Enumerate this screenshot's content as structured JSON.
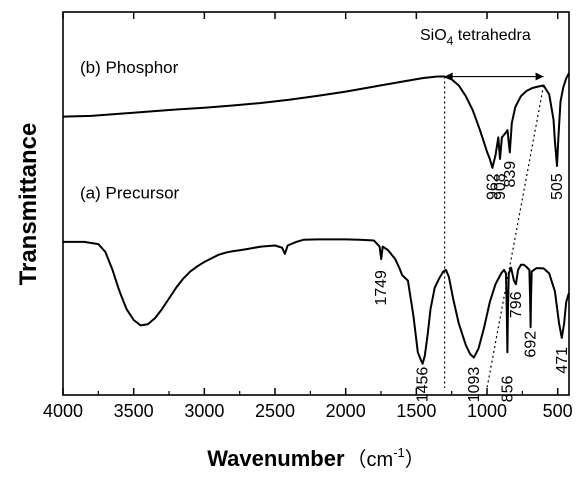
{
  "chart_data": {
    "type": "line",
    "xlabel": "Wavenumber",
    "xlabel_unit": "（cm",
    "xlabel_unit_exp": "-1",
    "xlabel_unit_close": "）",
    "ylabel": "Transmittance",
    "xlim": [
      4000,
      420
    ],
    "x_reversed": true,
    "ylim": [
      0,
      1
    ],
    "x_ticks": [
      4000,
      3500,
      3000,
      2500,
      2000,
      1500,
      1000,
      500
    ],
    "x_tick_labels": [
      "4000",
      "3500",
      "3000",
      "2500",
      "2000",
      "1500",
      "1000",
      "500"
    ],
    "y_ticks_shown": false,
    "grid": false,
    "series": [
      {
        "name": "(b) Phosphor",
        "points": [
          [
            4000,
            0.758
          ],
          [
            3800,
            0.76
          ],
          [
            3600,
            0.766
          ],
          [
            3400,
            0.772
          ],
          [
            3200,
            0.778
          ],
          [
            3000,
            0.783
          ],
          [
            2800,
            0.789
          ],
          [
            2600,
            0.796
          ],
          [
            2400,
            0.805
          ],
          [
            2200,
            0.816
          ],
          [
            2000,
            0.828
          ],
          [
            1800,
            0.842
          ],
          [
            1600,
            0.856
          ],
          [
            1450,
            0.866
          ],
          [
            1350,
            0.87
          ],
          [
            1300,
            0.87
          ],
          [
            1250,
            0.862
          ],
          [
            1200,
            0.845
          ],
          [
            1150,
            0.815
          ],
          [
            1100,
            0.775
          ],
          [
            1050,
            0.72
          ],
          [
            1000,
            0.66
          ],
          [
            980,
            0.64
          ],
          [
            962,
            0.615
          ],
          [
            940,
            0.65
          ],
          [
            920,
            0.7
          ],
          [
            908,
            0.64
          ],
          [
            895,
            0.7
          ],
          [
            870,
            0.712
          ],
          [
            855,
            0.72
          ],
          [
            839,
            0.658
          ],
          [
            825,
            0.74
          ],
          [
            800,
            0.785
          ],
          [
            760,
            0.815
          ],
          [
            720,
            0.83
          ],
          [
            680,
            0.838
          ],
          [
            640,
            0.842
          ],
          [
            600,
            0.845
          ],
          [
            560,
            0.82
          ],
          [
            530,
            0.75
          ],
          [
            520,
            0.69
          ],
          [
            505,
            0.62
          ],
          [
            495,
            0.7
          ],
          [
            480,
            0.8
          ],
          [
            460,
            0.84
          ],
          [
            440,
            0.865
          ],
          [
            420,
            0.88
          ]
        ]
      },
      {
        "name": "(a) Precursor",
        "points": [
          [
            4000,
            0.408
          ],
          [
            3850,
            0.408
          ],
          [
            3750,
            0.402
          ],
          [
            3700,
            0.38
          ],
          [
            3650,
            0.33
          ],
          [
            3600,
            0.27
          ],
          [
            3550,
            0.22
          ],
          [
            3500,
            0.19
          ],
          [
            3450,
            0.175
          ],
          [
            3400,
            0.178
          ],
          [
            3350,
            0.195
          ],
          [
            3300,
            0.22
          ],
          [
            3250,
            0.25
          ],
          [
            3200,
            0.28
          ],
          [
            3150,
            0.305
          ],
          [
            3100,
            0.325
          ],
          [
            3050,
            0.34
          ],
          [
            3000,
            0.352
          ],
          [
            2950,
            0.362
          ],
          [
            2900,
            0.372
          ],
          [
            2850,
            0.378
          ],
          [
            2800,
            0.382
          ],
          [
            2750,
            0.385
          ],
          [
            2700,
            0.388
          ],
          [
            2600,
            0.395
          ],
          [
            2500,
            0.398
          ],
          [
            2450,
            0.392
          ],
          [
            2430,
            0.375
          ],
          [
            2410,
            0.398
          ],
          [
            2350,
            0.408
          ],
          [
            2300,
            0.414
          ],
          [
            2200,
            0.415
          ],
          [
            2000,
            0.415
          ],
          [
            1900,
            0.414
          ],
          [
            1800,
            0.412
          ],
          [
            1760,
            0.395
          ],
          [
            1749,
            0.36
          ],
          [
            1738,
            0.395
          ],
          [
            1700,
            0.385
          ],
          [
            1650,
            0.36
          ],
          [
            1620,
            0.335
          ],
          [
            1600,
            0.315
          ],
          [
            1560,
            0.3
          ],
          [
            1520,
            0.2
          ],
          [
            1490,
            0.1
          ],
          [
            1470,
            0.08
          ],
          [
            1456,
            0.068
          ],
          [
            1440,
            0.09
          ],
          [
            1420,
            0.15
          ],
          [
            1400,
            0.22
          ],
          [
            1370,
            0.28
          ],
          [
            1340,
            0.305
          ],
          [
            1310,
            0.325
          ],
          [
            1290,
            0.33
          ],
          [
            1270,
            0.31
          ],
          [
            1240,
            0.25
          ],
          [
            1200,
            0.18
          ],
          [
            1150,
            0.12
          ],
          [
            1120,
            0.095
          ],
          [
            1093,
            0.085
          ],
          [
            1060,
            0.11
          ],
          [
            1020,
            0.17
          ],
          [
            980,
            0.24
          ],
          [
            940,
            0.29
          ],
          [
            900,
            0.32
          ],
          [
            880,
            0.33
          ],
          [
            866,
            0.32
          ],
          [
            860,
            0.21
          ],
          [
            856,
            0.1
          ],
          [
            852,
            0.21
          ],
          [
            846,
            0.32
          ],
          [
            830,
            0.336
          ],
          [
            810,
            0.3
          ],
          [
            796,
            0.29
          ],
          [
            780,
            0.33
          ],
          [
            760,
            0.344
          ],
          [
            740,
            0.344
          ],
          [
            720,
            0.338
          ],
          [
            700,
            0.33
          ],
          [
            695,
            0.25
          ],
          [
            692,
            0.17
          ],
          [
            689,
            0.25
          ],
          [
            684,
            0.325
          ],
          [
            650,
            0.335
          ],
          [
            600,
            0.334
          ],
          [
            560,
            0.32
          ],
          [
            520,
            0.27
          ],
          [
            490,
            0.18
          ],
          [
            471,
            0.14
          ],
          [
            455,
            0.18
          ],
          [
            440,
            0.24
          ],
          [
            425,
            0.26
          ],
          [
            420,
            0.265
          ]
        ]
      }
    ],
    "series_labels": [
      "(b) Phosphor",
      "(a) Precursor"
    ],
    "peak_labels": [
      {
        "text": "962",
        "x": 962,
        "y": 0.525,
        "series": "(b) Phosphor"
      },
      {
        "text": "908",
        "x": 908,
        "y": 0.525,
        "series": "(b) Phosphor"
      },
      {
        "text": "839",
        "x": 839,
        "y": 0.56,
        "series": "(b) Phosphor"
      },
      {
        "text": "505",
        "x": 505,
        "y": 0.525,
        "series": "(b) Phosphor"
      },
      {
        "text": "1749",
        "x": 1749,
        "y": 0.23,
        "series": "(a) Precursor"
      },
      {
        "text": "1456",
        "x": 1456,
        "y": -0.04,
        "series": "(a) Precursor"
      },
      {
        "text": "1093",
        "x": 1093,
        "y": -0.04,
        "series": "(a) Precursor"
      },
      {
        "text": "856",
        "x": 856,
        "y": -0.04,
        "series": "(a) Precursor"
      },
      {
        "text": "796",
        "x": 796,
        "y": 0.195,
        "series": "(a) Precursor"
      },
      {
        "text": "692",
        "x": 692,
        "y": 0.085,
        "series": "(a) Precursor"
      },
      {
        "text": "471",
        "x": 471,
        "y": 0.04,
        "series": "(a) Precursor"
      }
    ],
    "annotation": {
      "text_main": "SiO",
      "text_sub": "4",
      "text_rest": " tetrahedra",
      "range": [
        1300,
        600
      ],
      "guide_lines": [
        {
          "x1": 1300,
          "y1": 0.87,
          "x2": 1300,
          "y2": 0.0
        },
        {
          "x1": 600,
          "y1": 0.845,
          "x2": 1000,
          "y2": 0.0
        }
      ]
    }
  }
}
